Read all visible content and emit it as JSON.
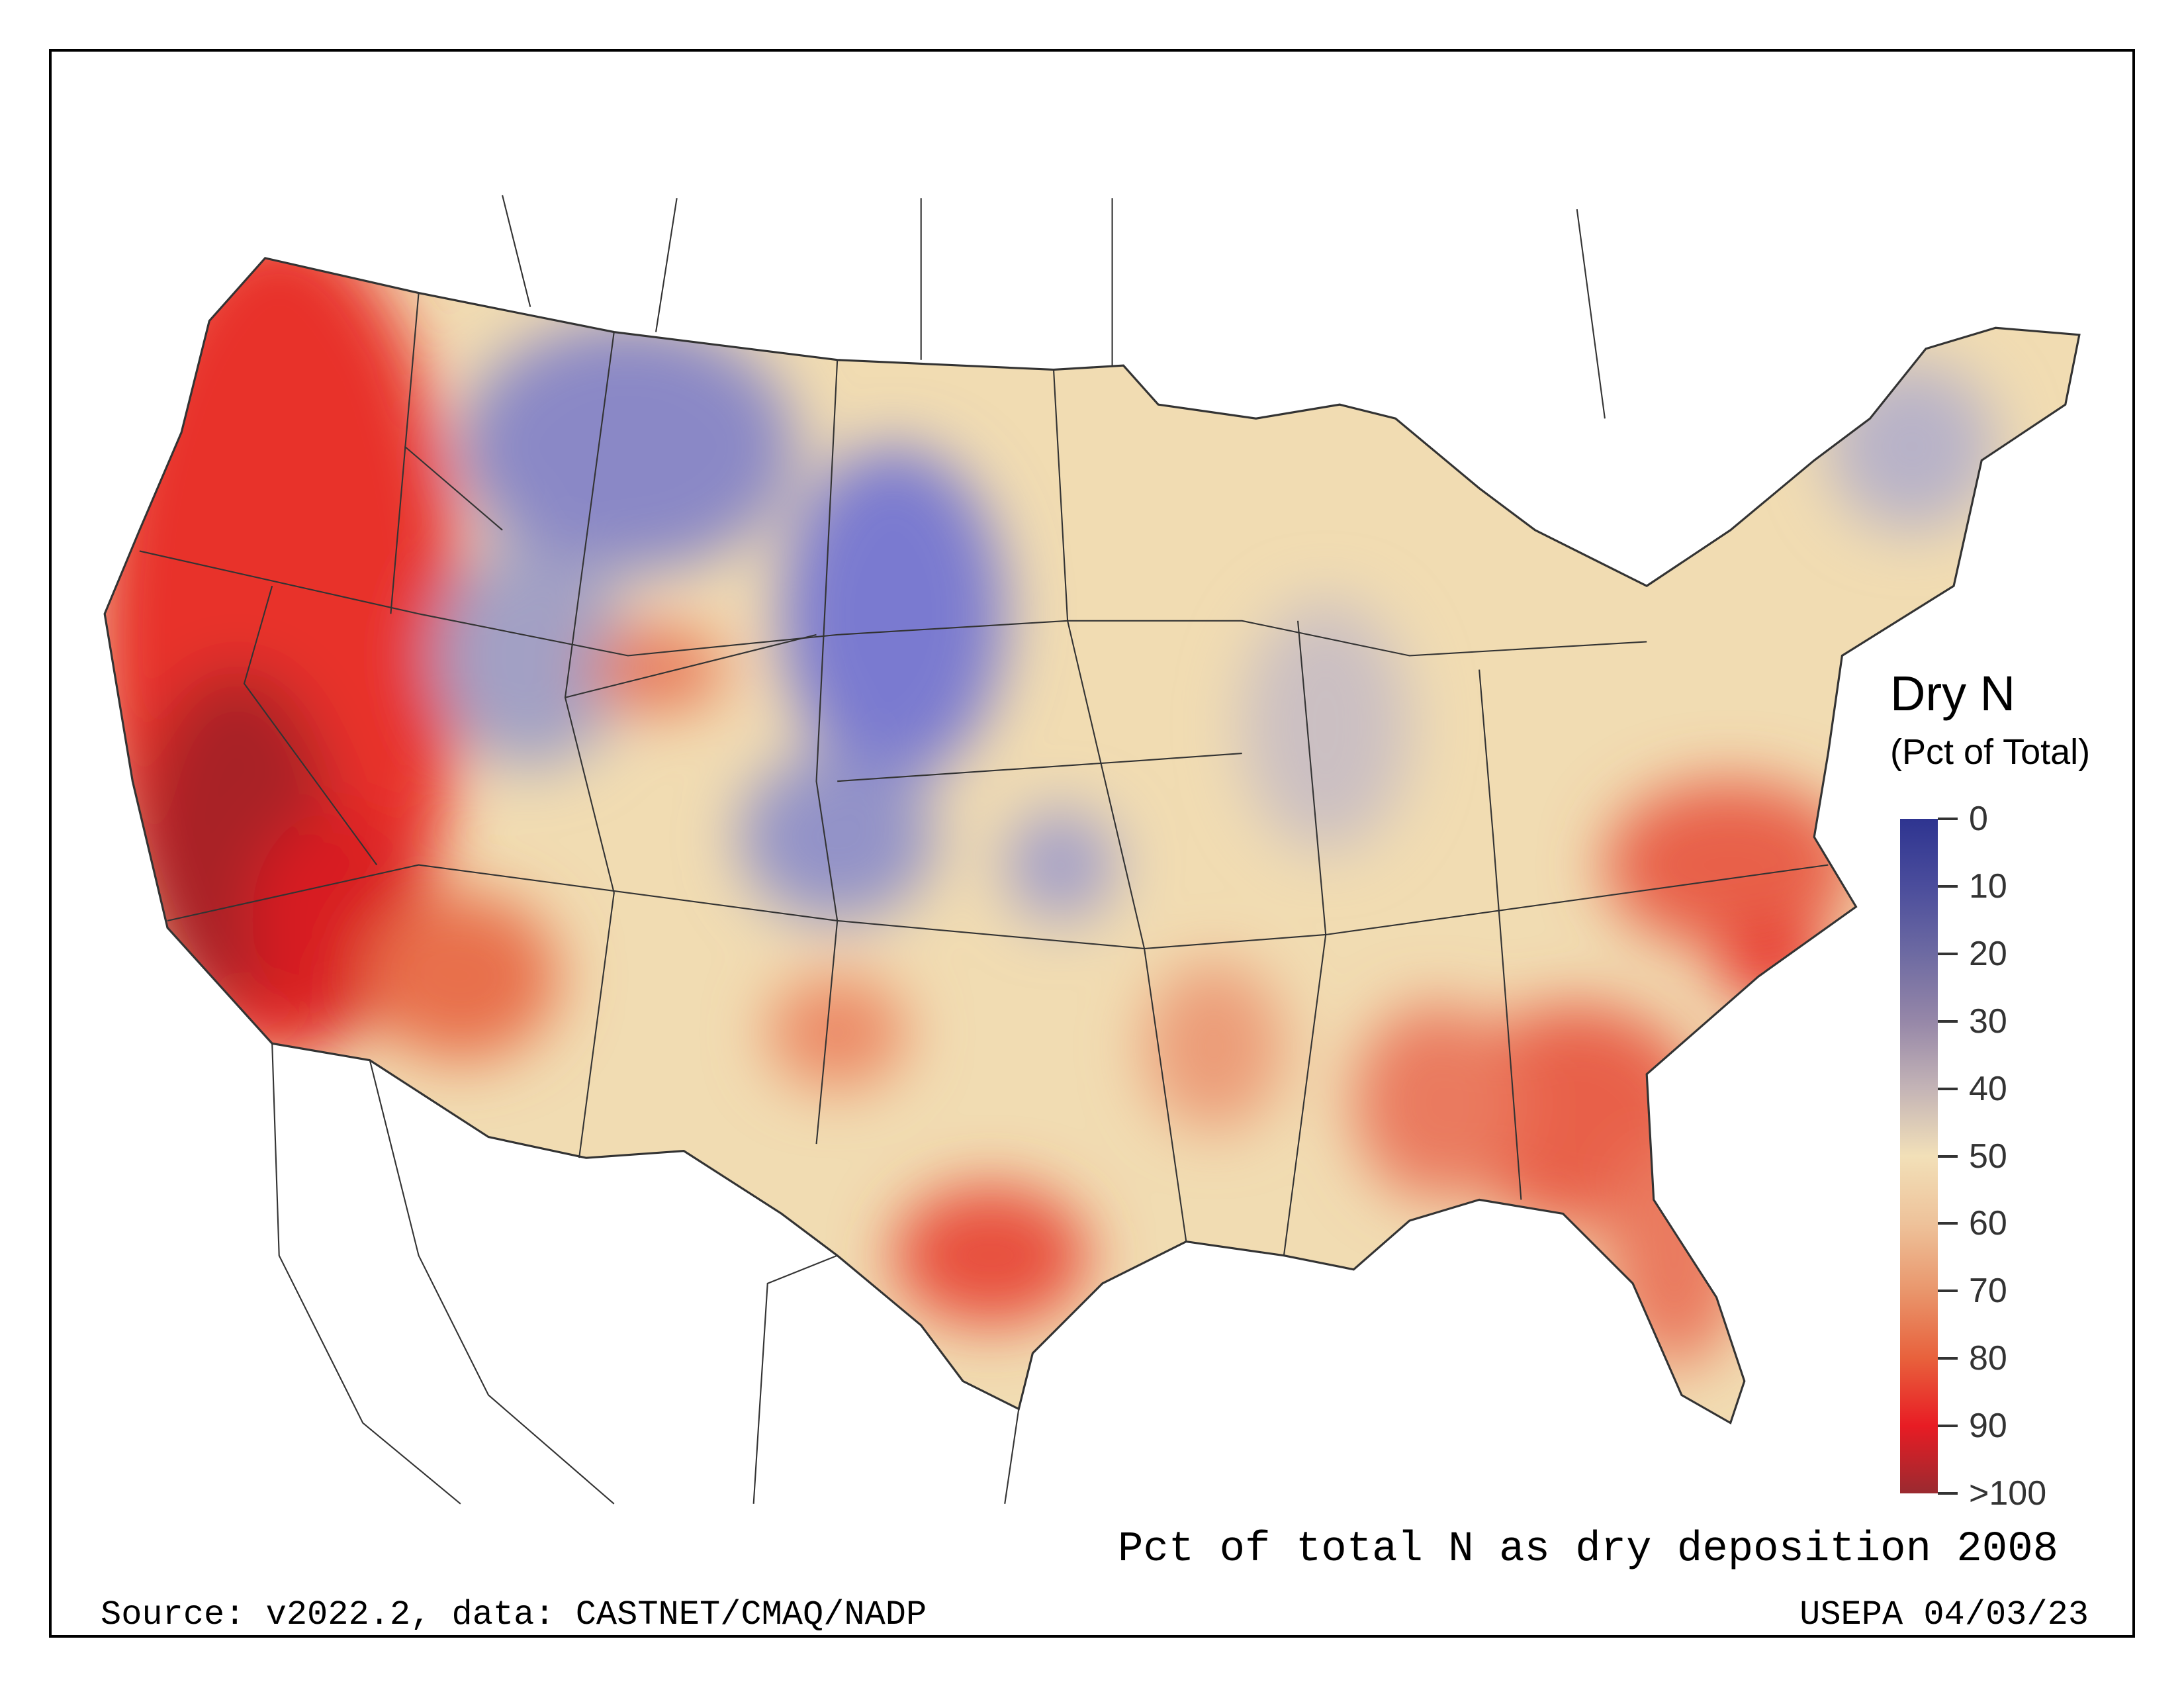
{
  "legend": {
    "title": "Dry N",
    "subtitle": "(Pct of Total)",
    "ticks": [
      "0",
      "10",
      "20",
      "30",
      "40",
      "50",
      "60",
      "70",
      "80",
      "90",
      ">100"
    ],
    "colors": {
      "low": "#2e3490",
      "mid": "#f2e0b8",
      "high": "#e81c24",
      "max": "#9a2a30"
    }
  },
  "caption": "Pct of total N as dry deposition 2008",
  "source": "Source: v2022.2, data: CASTNET/CMAQ/NADP",
  "agency_date": "USEPA 04/03/23"
}
